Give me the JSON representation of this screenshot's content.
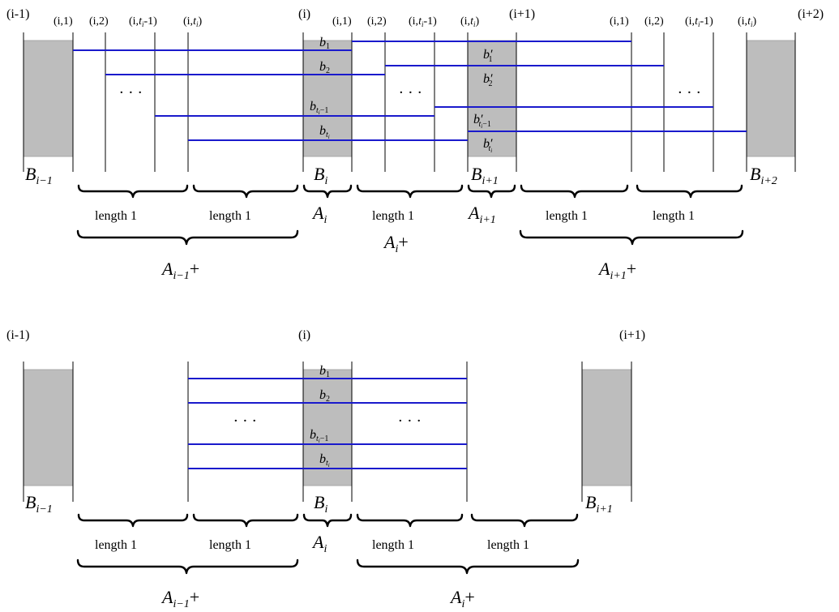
{
  "top": {
    "blocks": {
      "prev": "(i-1)",
      "cur": "(i)",
      "next": "(i+1)",
      "next2": "(i+2)"
    },
    "cols": {
      "c1": "(i,1)",
      "c2": "(i,2)",
      "cprev_pre": "(i,",
      "cprev_post": "-1)",
      "clast_pre": "(i,",
      "clast_post": ")",
      "t": "t",
      "i": "i"
    },
    "edges": {
      "b": "b",
      "bp": "b′",
      "sub1": "1",
      "sub2": "2",
      "t": "t",
      "i": "i",
      "minus1": "−1"
    },
    "block_labels": {
      "B": "B",
      "sub_prev": "i−1",
      "sub_cur": "i",
      "sub_next": "i+1",
      "sub_next2": "i+2"
    },
    "braces": {
      "length": "length 1",
      "A": "A",
      "sub_cur": "i",
      "sub_next": "i+1",
      "sub_prev": "i−1",
      "plus": "+"
    },
    "dots": "· · ·"
  },
  "bottom": {
    "blocks": {
      "prev": "(i-1)",
      "cur": "(i)",
      "next": "(i+1)"
    },
    "edges": {
      "b": "b",
      "sub1": "1",
      "sub2": "2",
      "t": "t",
      "i": "i",
      "minus1": "−1"
    },
    "block_labels": {
      "B": "B",
      "sub_prev": "i−1",
      "sub_cur": "i",
      "sub_next": "i+1"
    },
    "braces": {
      "length": "length 1",
      "A": "A",
      "sub_cur": "i",
      "sub_prev": "i−1",
      "plus": "+"
    },
    "dots": "· · ·"
  }
}
